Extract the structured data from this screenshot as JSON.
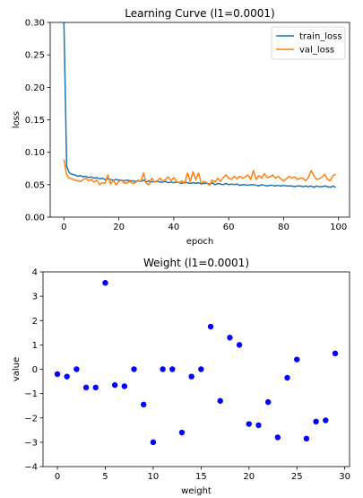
{
  "chart_data": [
    {
      "type": "line",
      "title": "Learning Curve (l1=0.0001)",
      "xlabel": "epoch",
      "ylabel": "loss",
      "xlim": [
        -5,
        104
      ],
      "ylim": [
        0,
        0.3
      ],
      "xticks": [
        0,
        20,
        40,
        60,
        80,
        100
      ],
      "yticks": [
        0.0,
        0.05,
        0.1,
        0.15,
        0.2,
        0.25,
        0.3
      ],
      "legend": "top-right",
      "grid": false,
      "x": [
        0,
        1,
        2,
        3,
        4,
        5,
        6,
        7,
        8,
        9,
        10,
        11,
        12,
        13,
        14,
        15,
        16,
        17,
        18,
        19,
        20,
        21,
        22,
        23,
        24,
        25,
        26,
        27,
        28,
        29,
        30,
        31,
        32,
        33,
        34,
        35,
        36,
        37,
        38,
        39,
        40,
        41,
        42,
        43,
        44,
        45,
        46,
        47,
        48,
        49,
        50,
        51,
        52,
        53,
        54,
        55,
        56,
        57,
        58,
        59,
        60,
        61,
        62,
        63,
        64,
        65,
        66,
        67,
        68,
        69,
        70,
        71,
        72,
        73,
        74,
        75,
        76,
        77,
        78,
        79,
        80,
        81,
        82,
        83,
        84,
        85,
        86,
        87,
        88,
        89,
        90,
        91,
        92,
        93,
        94,
        95,
        96,
        97,
        98,
        99
      ],
      "series": [
        {
          "name": "train_loss",
          "color": "#1f77b4",
          "values": [
            0.3,
            0.078,
            0.068,
            0.066,
            0.065,
            0.063,
            0.064,
            0.062,
            0.063,
            0.061,
            0.062,
            0.06,
            0.061,
            0.059,
            0.06,
            0.058,
            0.059,
            0.058,
            0.057,
            0.058,
            0.057,
            0.057,
            0.056,
            0.057,
            0.056,
            0.056,
            0.055,
            0.056,
            0.055,
            0.057,
            0.054,
            0.056,
            0.054,
            0.055,
            0.055,
            0.054,
            0.054,
            0.055,
            0.053,
            0.054,
            0.053,
            0.054,
            0.053,
            0.052,
            0.054,
            0.053,
            0.052,
            0.053,
            0.052,
            0.053,
            0.051,
            0.052,
            0.052,
            0.051,
            0.053,
            0.05,
            0.052,
            0.051,
            0.05,
            0.052,
            0.05,
            0.051,
            0.05,
            0.051,
            0.049,
            0.05,
            0.05,
            0.049,
            0.05,
            0.05,
            0.049,
            0.048,
            0.05,
            0.049,
            0.048,
            0.049,
            0.049,
            0.048,
            0.049,
            0.048,
            0.049,
            0.048,
            0.048,
            0.048,
            0.047,
            0.048,
            0.048,
            0.047,
            0.048,
            0.047,
            0.048,
            0.046,
            0.048,
            0.047,
            0.047,
            0.048,
            0.047,
            0.046,
            0.048,
            0.046
          ]
        },
        {
          "name": "val_loss",
          "color": "#ff7f0e",
          "values": [
            0.089,
            0.065,
            0.06,
            0.059,
            0.057,
            0.056,
            0.055,
            0.058,
            0.06,
            0.056,
            0.058,
            0.054,
            0.057,
            0.05,
            0.053,
            0.052,
            0.065,
            0.051,
            0.057,
            0.05,
            0.055,
            0.057,
            0.052,
            0.053,
            0.055,
            0.052,
            0.053,
            0.057,
            0.055,
            0.068,
            0.052,
            0.05,
            0.06,
            0.054,
            0.056,
            0.06,
            0.055,
            0.058,
            0.062,
            0.056,
            0.061,
            0.055,
            0.053,
            0.056,
            0.052,
            0.068,
            0.055,
            0.07,
            0.058,
            0.068,
            0.052,
            0.055,
            0.053,
            0.049,
            0.057,
            0.054,
            0.06,
            0.055,
            0.061,
            0.065,
            0.06,
            0.058,
            0.063,
            0.059,
            0.063,
            0.06,
            0.062,
            0.065,
            0.058,
            0.072,
            0.058,
            0.064,
            0.06,
            0.067,
            0.061,
            0.062,
            0.065,
            0.06,
            0.063,
            0.059,
            0.056,
            0.059,
            0.063,
            0.06,
            0.062,
            0.058,
            0.06,
            0.06,
            0.056,
            0.061,
            0.072,
            0.064,
            0.058,
            0.059,
            0.062,
            0.066,
            0.058,
            0.056,
            0.064,
            0.066
          ]
        }
      ]
    },
    {
      "type": "scatter",
      "title": "Weight (l1=0.0001)",
      "xlabel": "weight",
      "ylabel": "value",
      "xlim": [
        -1.5,
        30.5
      ],
      "ylim": [
        -4,
        4
      ],
      "xticks": [
        0,
        5,
        10,
        15,
        20,
        25,
        30
      ],
      "yticks": [
        -4,
        -3,
        -2,
        -1,
        0,
        1,
        2,
        3,
        4
      ],
      "grid": false,
      "color": "#0000ff",
      "x": [
        0,
        1,
        2,
        3,
        4,
        5,
        6,
        7,
        8,
        9,
        10,
        11,
        12,
        13,
        14,
        15,
        16,
        17,
        18,
        19,
        20,
        21,
        22,
        23,
        24,
        25,
        26,
        27,
        28,
        29
      ],
      "y": [
        -0.2,
        -0.3,
        0.0,
        -0.75,
        -0.75,
        3.55,
        -0.65,
        -0.7,
        0.0,
        -1.45,
        -3.0,
        0.0,
        0.0,
        -2.6,
        -0.3,
        0.0,
        1.75,
        -1.3,
        1.3,
        1.0,
        -2.25,
        -2.3,
        -1.35,
        -2.8,
        -0.35,
        0.4,
        -2.85,
        -2.15,
        -2.1,
        0.65
      ]
    }
  ]
}
